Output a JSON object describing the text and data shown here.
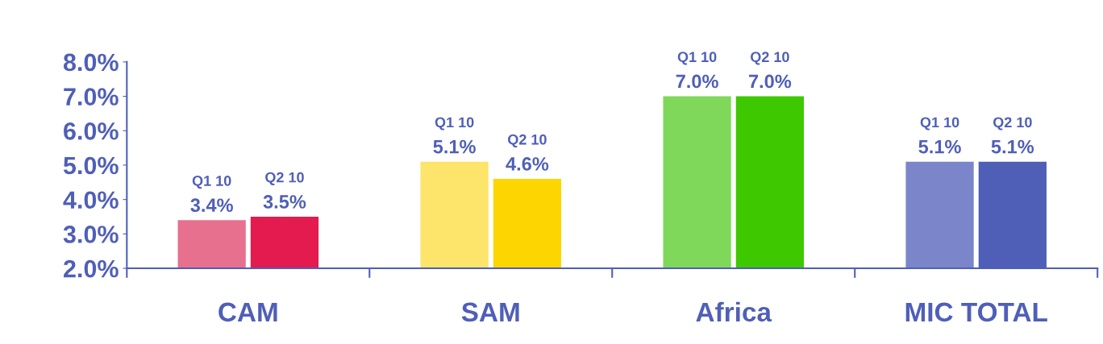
{
  "chart_data": {
    "type": "bar",
    "categories": [
      "CAM",
      "SAM",
      "Africa",
      "MIC TOTAL"
    ],
    "series": [
      {
        "name": "Q1 10",
        "colors": [
          "#e8708f",
          "#fde46a",
          "#7fd85a",
          "#7a86c9"
        ],
        "values": [
          3.4,
          5.1,
          7.0,
          5.1
        ],
        "value_labels": [
          "3.4%",
          "5.1%",
          "7.0%",
          "5.1%"
        ]
      },
      {
        "name": "Q2 10",
        "colors": [
          "#e31b4f",
          "#fdd500",
          "#3ec800",
          "#4f5fb8"
        ],
        "values": [
          3.5,
          4.6,
          7.0,
          5.1
        ],
        "value_labels": [
          "3.5%",
          "4.6%",
          "7.0%",
          "5.1%"
        ]
      }
    ],
    "ylim": [
      2.0,
      8.0
    ],
    "yticks": [
      {
        "value": 2,
        "label": "2.0%"
      },
      {
        "value": 3,
        "label": "3.0%"
      },
      {
        "value": 4,
        "label": "4.0%"
      },
      {
        "value": 5,
        "label": "5.0%"
      },
      {
        "value": 6,
        "label": "6.0%"
      },
      {
        "value": 7,
        "label": "7.0%"
      },
      {
        "value": 8,
        "label": "8.0%"
      }
    ],
    "grid": false,
    "legend": false
  }
}
